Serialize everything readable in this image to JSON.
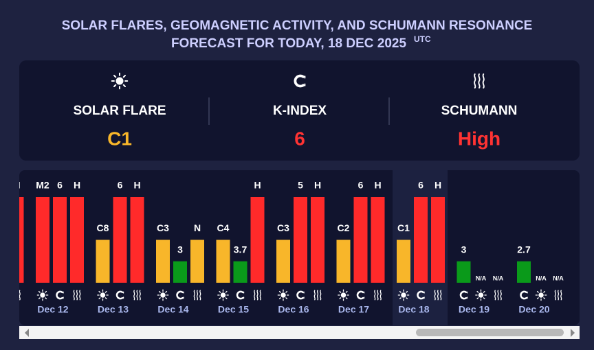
{
  "header": {
    "title_line1": "SOLAR FLARES, GEOMAGNETIC ACTIVITY, AND SCHUMANN RESONANCE",
    "title_line2": "FORECAST FOR TODAY, 18 DEC 2025",
    "title_sup": "UTC"
  },
  "summary": [
    {
      "kind": "solar",
      "label": "SOLAR FLARE",
      "value": "C1",
      "color": "#f8b62a"
    },
    {
      "kind": "kindex",
      "label": "K-INDEX",
      "value": "6",
      "color": "#ff3333"
    },
    {
      "kind": "schumann",
      "label": "SCHUMANN",
      "value": "High",
      "color": "#ff3333"
    }
  ],
  "timeline": {
    "ylim": [
      0,
      4
    ],
    "days": [
      {
        "date": null,
        "bars": [
          {
            "kind": "schumann",
            "label": "H",
            "level": 4,
            "color": "#ff2a2a"
          }
        ]
      },
      {
        "date": "Dec 12",
        "bars": [
          {
            "kind": "solar",
            "label": "M2",
            "level": 4,
            "color": "#ff2a2a"
          },
          {
            "kind": "kindex",
            "label": "6",
            "level": 4,
            "color": "#ff2a2a"
          },
          {
            "kind": "schumann",
            "label": "H",
            "level": 4,
            "color": "#ff2a2a"
          }
        ]
      },
      {
        "date": "Dec 13",
        "bars": [
          {
            "kind": "solar",
            "label": "C8",
            "level": 2,
            "color": "#f8b62a"
          },
          {
            "kind": "kindex",
            "label": "6",
            "level": 4,
            "color": "#ff2a2a"
          },
          {
            "kind": "schumann",
            "label": "H",
            "level": 4,
            "color": "#ff2a2a"
          }
        ]
      },
      {
        "date": "Dec 14",
        "bars": [
          {
            "kind": "solar",
            "label": "C3",
            "level": 2,
            "color": "#f8b62a"
          },
          {
            "kind": "kindex",
            "label": "3",
            "level": 1,
            "color": "#0a9a1a"
          },
          {
            "kind": "schumann",
            "label": "N",
            "level": 2,
            "color": "#f8b62a"
          }
        ]
      },
      {
        "date": "Dec 15",
        "bars": [
          {
            "kind": "solar",
            "label": "C4",
            "level": 2,
            "color": "#f8b62a"
          },
          {
            "kind": "kindex",
            "label": "3.7",
            "level": 1,
            "color": "#0a9a1a"
          },
          {
            "kind": "schumann",
            "label": "H",
            "level": 4,
            "color": "#ff2a2a"
          }
        ]
      },
      {
        "date": "Dec 16",
        "bars": [
          {
            "kind": "solar",
            "label": "C3",
            "level": 2,
            "color": "#f8b62a"
          },
          {
            "kind": "kindex",
            "label": "5",
            "level": 4,
            "color": "#ff2a2a"
          },
          {
            "kind": "schumann",
            "label": "H",
            "level": 4,
            "color": "#ff2a2a"
          }
        ]
      },
      {
        "date": "Dec 17",
        "bars": [
          {
            "kind": "solar",
            "label": "C2",
            "level": 2,
            "color": "#f8b62a"
          },
          {
            "kind": "kindex",
            "label": "6",
            "level": 4,
            "color": "#ff2a2a"
          },
          {
            "kind": "schumann",
            "label": "H",
            "level": 4,
            "color": "#ff2a2a"
          }
        ]
      },
      {
        "date": "Dec 18",
        "today": true,
        "bars": [
          {
            "kind": "solar",
            "label": "C1",
            "level": 2,
            "color": "#f8b62a"
          },
          {
            "kind": "kindex",
            "label": "6",
            "level": 4,
            "color": "#ff2a2a"
          },
          {
            "kind": "schumann",
            "label": "H",
            "level": 4,
            "color": "#ff2a2a"
          }
        ]
      },
      {
        "date": "Dec 19",
        "bars": [
          {
            "kind": "kindex",
            "label": "3",
            "level": 1,
            "color": "#0a9a1a"
          },
          {
            "kind": "solar",
            "label": "N/A",
            "level": 0,
            "color": "#f8b62a"
          },
          {
            "kind": "schumann",
            "label": "N/A",
            "level": 0,
            "color": "#ff2a2a"
          }
        ]
      },
      {
        "date": "Dec 20",
        "bars": [
          {
            "kind": "kindex",
            "label": "2.7",
            "level": 1,
            "color": "#0a9a1a"
          },
          {
            "kind": "solar",
            "label": "N/A",
            "level": 0,
            "color": "#f8b62a"
          },
          {
            "kind": "schumann",
            "label": "N/A",
            "level": 0,
            "color": "#ff2a2a"
          }
        ]
      }
    ]
  }
}
